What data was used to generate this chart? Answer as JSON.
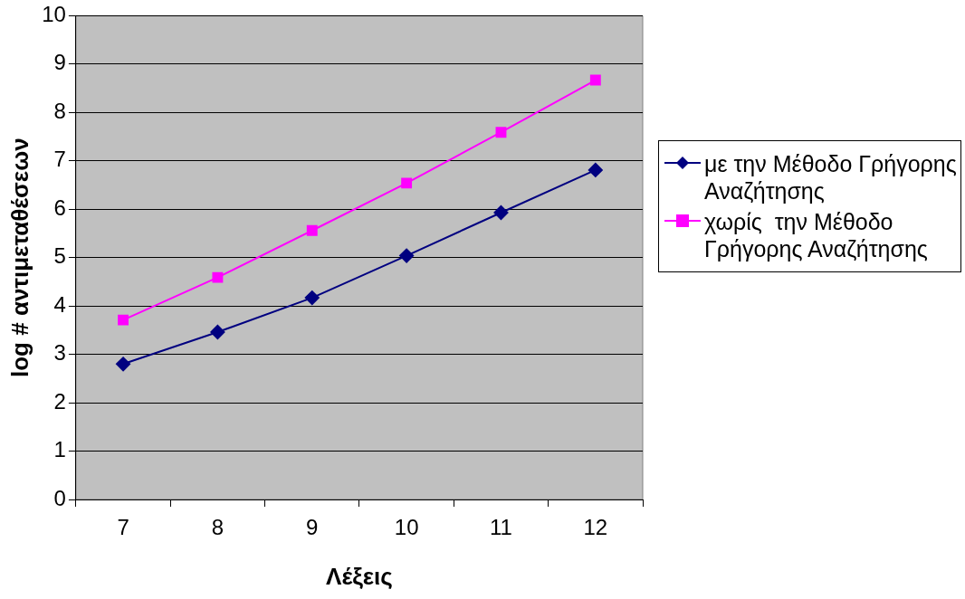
{
  "chart_data": {
    "type": "line",
    "xlabel": "Λέξεις",
    "ylabel": "log # αντιμεταθέσεων",
    "categories": [
      "7",
      "8",
      "9",
      "10",
      "11",
      "12"
    ],
    "series": [
      {
        "name": "με την Μέθοδο Γρήγορης Αναζήτησης",
        "color": "#000080",
        "marker": "diamond",
        "values": [
          2.8,
          3.46,
          4.17,
          5.04,
          5.93,
          6.81
        ]
      },
      {
        "name": "χωρίς  την Μέθοδο Γρήγορης Αναζήτησης",
        "color": "#ff00ff",
        "marker": "square",
        "values": [
          3.71,
          4.59,
          5.56,
          6.54,
          7.59,
          8.67
        ]
      }
    ],
    "ylim": [
      0,
      10
    ],
    "yticks": [
      0,
      1,
      2,
      3,
      4,
      5,
      6,
      7,
      8,
      9,
      10
    ],
    "grid": "y",
    "legend": "right",
    "line_style": "solid"
  }
}
